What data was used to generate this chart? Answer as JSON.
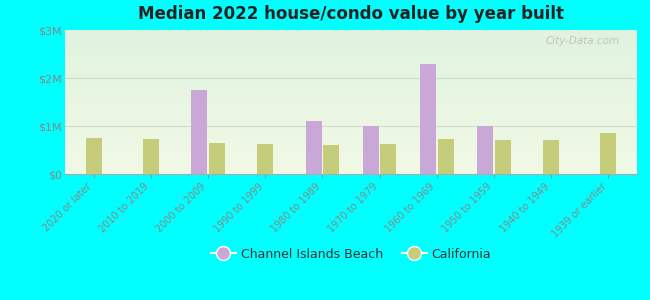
{
  "title": "Median 2022 house/condo value by year built",
  "background_color": "#00FFFF",
  "categories": [
    "2020 or later",
    "2010 to 2019",
    "2000 to 2009",
    "1990 to 1999",
    "1980 to 1989",
    "1970 to 1979",
    "1960 to 1969",
    "1950 to 1959",
    "1940 to 1949",
    "1939 or earlier"
  ],
  "channel_islands": [
    0,
    0,
    1750000,
    0,
    1100000,
    1000000,
    2300000,
    1000000,
    0,
    0
  ],
  "california": [
    750000,
    720000,
    650000,
    620000,
    610000,
    630000,
    720000,
    700000,
    700000,
    850000
  ],
  "channel_color": "#c9a8d8",
  "california_color": "#c5cc7a",
  "ylim": [
    0,
    3000000
  ],
  "yticks": [
    0,
    1000000,
    2000000,
    3000000
  ],
  "ytick_labels": [
    "$0",
    "$1M",
    "$2M",
    "$3M"
  ],
  "legend_channel": "Channel Islands Beach",
  "legend_california": "California",
  "watermark": "City-Data.com",
  "grid_color": "#ccddcc",
  "bar_width": 0.28
}
